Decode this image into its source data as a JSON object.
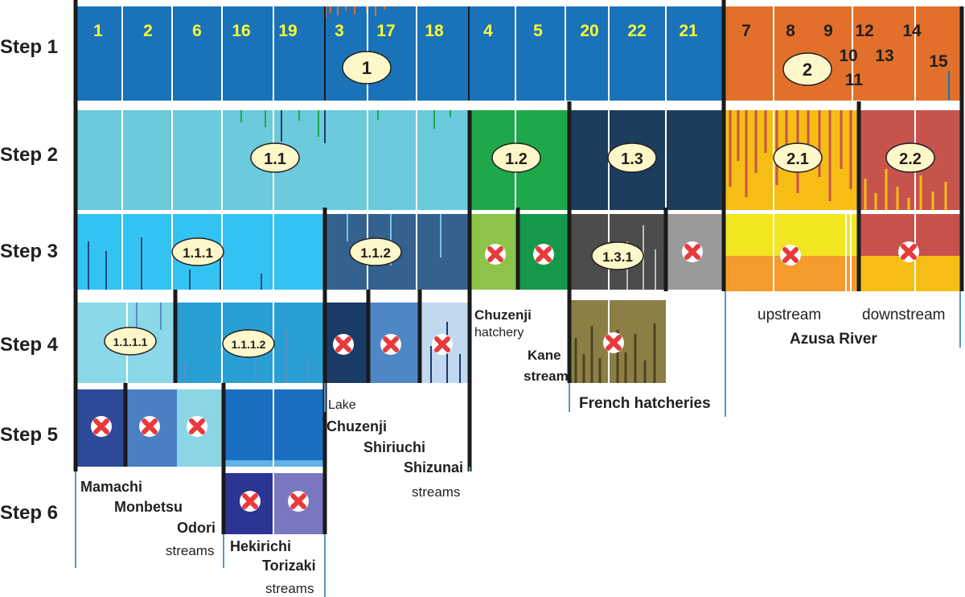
{
  "steps": [
    "Step 1",
    "Step 2",
    "Step 3",
    "Step 4",
    "Step 5",
    "Step 6"
  ],
  "population_numbers": [
    "1",
    "2",
    "6",
    "16",
    "19",
    "3",
    "17",
    "18",
    "4",
    "5",
    "20",
    "22",
    "21",
    "7",
    "8",
    "9",
    "12",
    "14",
    "10",
    "13",
    "11",
    "15"
  ],
  "clusters": {
    "c1": "1",
    "c2": "2",
    "c1_1": "1.1",
    "c1_2": "1.2",
    "c1_3": "1.3",
    "c2_1": "2.1",
    "c2_2": "2.2",
    "c1_1_1": "1.1.1",
    "c1_1_2": "1.1.2",
    "c1_3_1": "1.3.1",
    "c1_1_1_1": "1.1.1.1",
    "c1_1_1_2": "1.1.1.2"
  },
  "site_labels": {
    "chuzenji": "Chuzenji",
    "hatchery": "hatchery",
    "kane": "Kane",
    "kane_stream": "stream",
    "french_hatcheries": "French hatcheries",
    "upstream": "upstream",
    "downstream": "downstream",
    "azusa_river": "Azusa River",
    "lake": "Lake",
    "lake_chuzenji": "Chuzenji",
    "shiriuchi": "Shiriuchi",
    "shizunai": "Shizunai",
    "streams_a": "streams",
    "mamachi": "Mamachi",
    "monbetsu": "Monbetsu",
    "odori": "Odori",
    "streams_b": "streams",
    "hekirichi": "Hekirichi",
    "torizaki": "Torizaki",
    "streams_c": "streams"
  },
  "colors": {
    "cluster1": "#1a72b8",
    "cluster2": "#e2702a",
    "c1_1": "#6bcadb",
    "c1_2": "#1fa84a",
    "c1_3": "#1d3d5c",
    "c2_1": "#f6bd14",
    "c2_2": "#c6544d",
    "c1_1_1": "#33c3f2",
    "c1_1_2": "#35618f",
    "chuzenji_hatchery": "#8cc44a",
    "kane_stream": "#16984a",
    "c1_3_1": "#4c4c4c",
    "french_other": "#9a9a9a",
    "upstream": "#f2e620",
    "downstream": "#c7524c",
    "c1_1_1_1": "#8ad8e8",
    "c1_1_1_2": "#2a9fd4",
    "lake_chuzenji": "#1a3b66",
    "shiriuchi": "#4f86c6",
    "shizunai": "#c2d8ef",
    "french_hatcheries": "#8c7f46",
    "mamachi": "#2d4a9a",
    "monbetsu": "#4a7fc1",
    "odori": "#8ad6e5",
    "step5_group": "#1a6fc0",
    "hekirichi": "#2c3592",
    "torizaki": "#7a78c0",
    "number_yellow": "#ffff33",
    "excluded_mark": "#e8393b"
  }
}
